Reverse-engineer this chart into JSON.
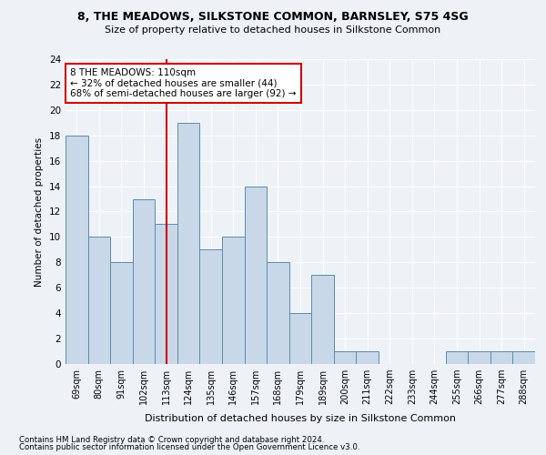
{
  "title1": "8, THE MEADOWS, SILKSTONE COMMON, BARNSLEY, S75 4SG",
  "title2": "Size of property relative to detached houses in Silkstone Common",
  "xlabel": "Distribution of detached houses by size in Silkstone Common",
  "ylabel": "Number of detached properties",
  "footnote1": "Contains HM Land Registry data © Crown copyright and database right 2024.",
  "footnote2": "Contains public sector information licensed under the Open Government Licence v3.0.",
  "categories": [
    "69sqm",
    "80sqm",
    "91sqm",
    "102sqm",
    "113sqm",
    "124sqm",
    "135sqm",
    "146sqm",
    "157sqm",
    "168sqm",
    "179sqm",
    "189sqm",
    "200sqm",
    "211sqm",
    "222sqm",
    "233sqm",
    "244sqm",
    "255sqm",
    "266sqm",
    "277sqm",
    "288sqm"
  ],
  "values": [
    18,
    10,
    8,
    13,
    11,
    19,
    9,
    10,
    14,
    8,
    4,
    7,
    1,
    1,
    0,
    0,
    0,
    1,
    1,
    1,
    1
  ],
  "bar_color": "#c8d8e8",
  "bar_edge_color": "#5a8ab0",
  "red_line_index": 4,
  "annotation_title": "8 THE MEADOWS: 110sqm",
  "annotation_line1": "← 32% of detached houses are smaller (44)",
  "annotation_line2": "68% of semi-detached houses are larger (92) →",
  "ylim": [
    0,
    24
  ],
  "yticks": [
    0,
    2,
    4,
    6,
    8,
    10,
    12,
    14,
    16,
    18,
    20,
    22,
    24
  ],
  "annotation_box_color": "#ffffff",
  "annotation_box_edge": "#cc0000",
  "red_line_color": "#cc0000",
  "background_color": "#eef2f7",
  "grid_color": "#ffffff"
}
